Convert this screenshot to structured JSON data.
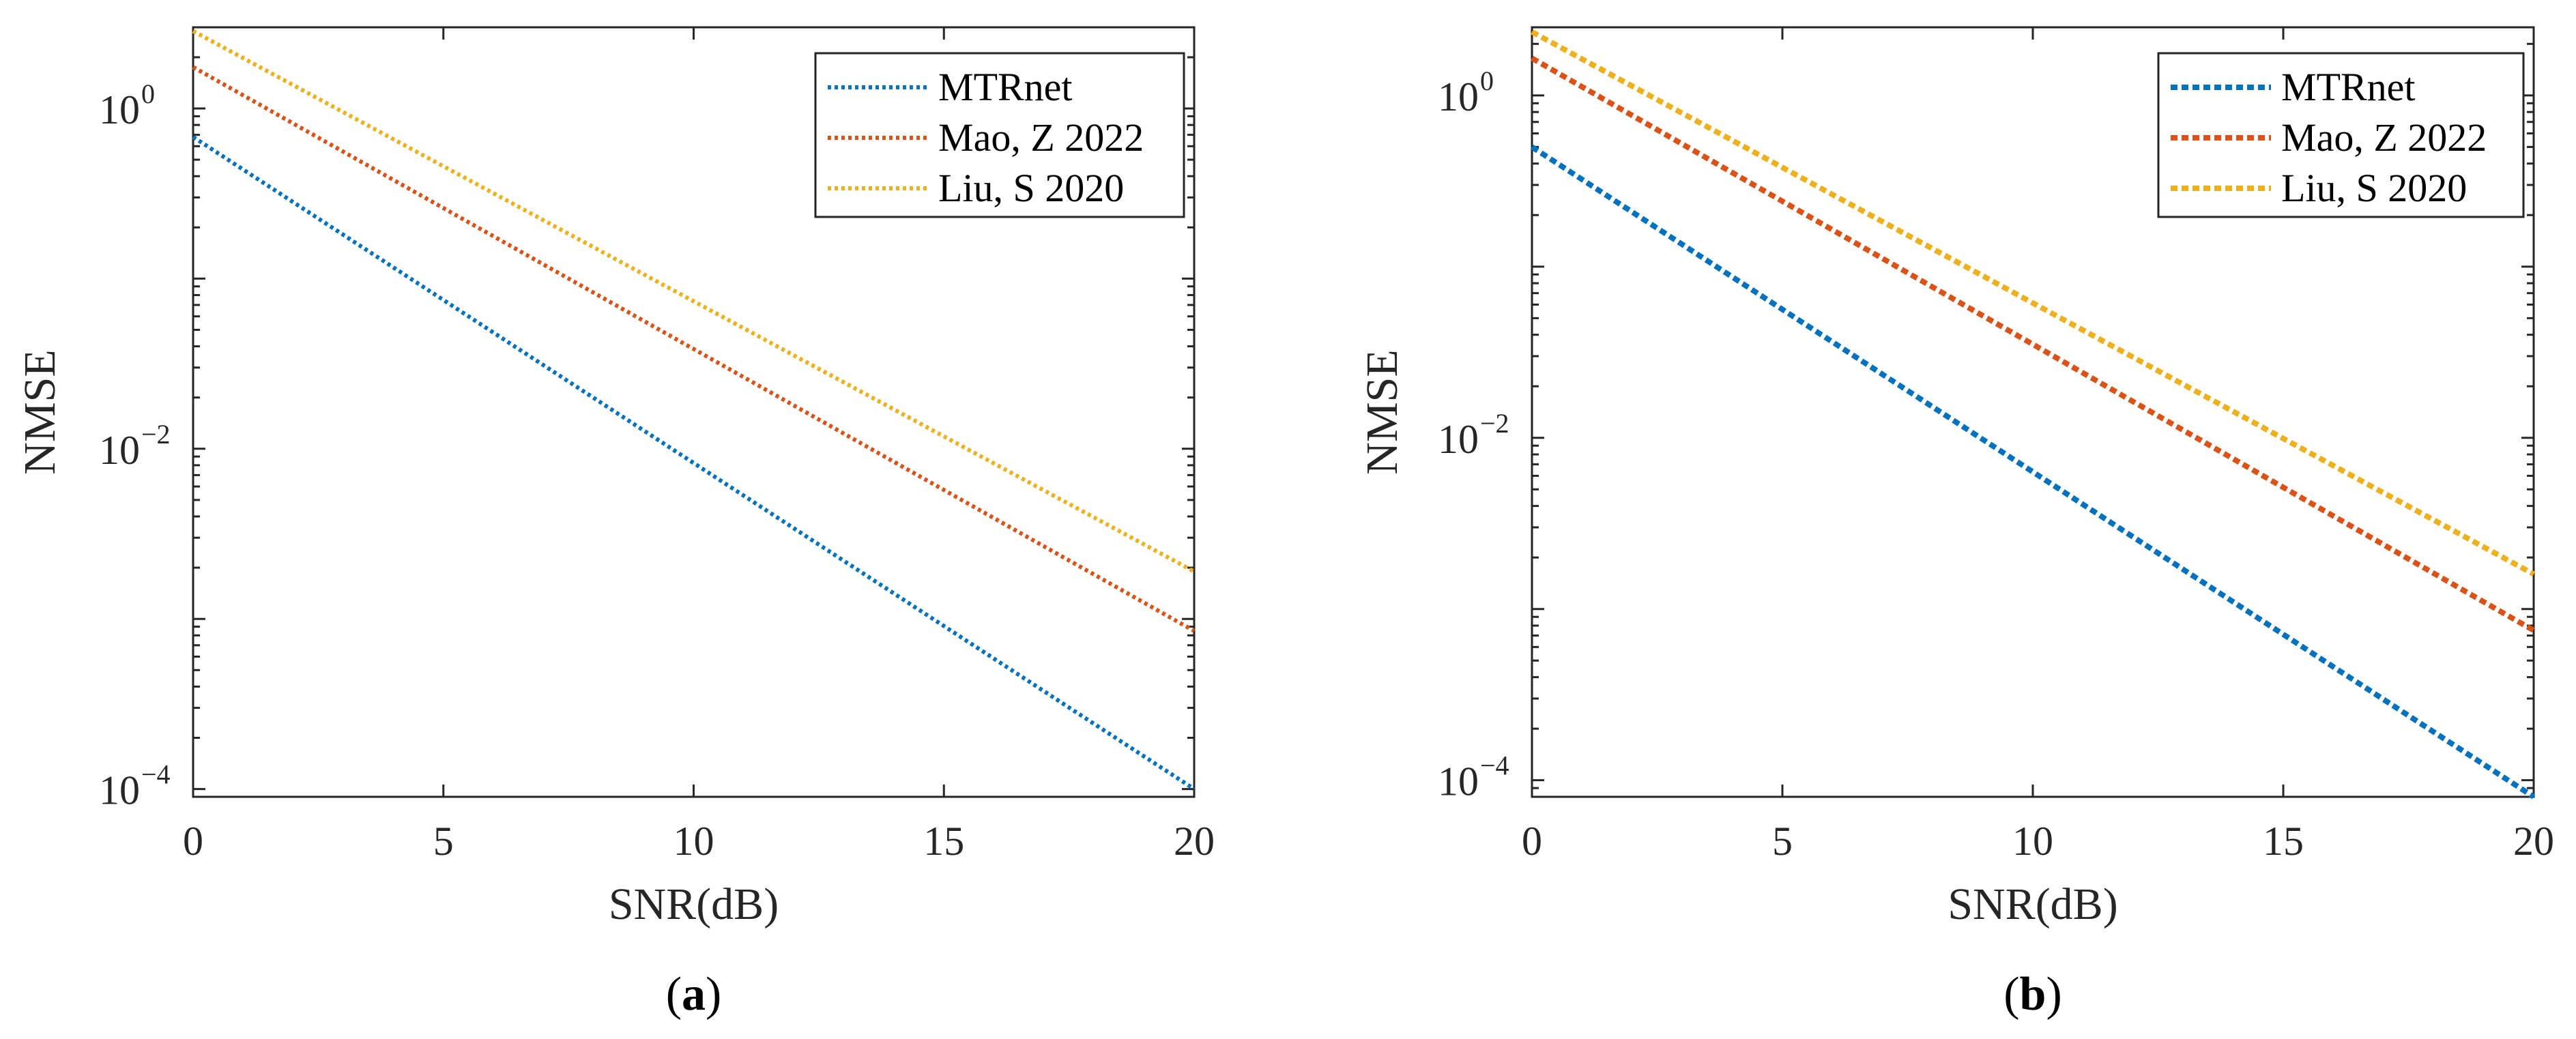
{
  "figure": {
    "panels": [
      {
        "caption_open": "(",
        "caption_letter": "a",
        "caption_close": ")"
      },
      {
        "caption_open": "(",
        "caption_letter": "b",
        "caption_close": ")"
      }
    ]
  },
  "chart_data": [
    {
      "type": "line",
      "title": "",
      "xlabel": "SNR(dB)",
      "ylabel": "NMSE",
      "yscale": "log",
      "xlim": [
        0,
        20
      ],
      "ylim": [
        9e-05,
        3.0
      ],
      "xticks": [
        0,
        5,
        10,
        15,
        20
      ],
      "xtick_labels": [
        "0",
        "5",
        "10",
        "15",
        "20"
      ],
      "yticks": [
        0.0001,
        0.01,
        1
      ],
      "ytick_labels": [
        {
          "base": "10",
          "exp": "−4"
        },
        {
          "base": "10",
          "exp": "−2"
        },
        {
          "base": "10",
          "exp": "0"
        }
      ],
      "grid": false,
      "legend_position": "top-right",
      "x": [
        0,
        20
      ],
      "series": [
        {
          "name": "MTRnet",
          "color": "#0072BD",
          "line_style": "dotted",
          "values": [
            0.68,
            0.0001
          ]
        },
        {
          "name": "Mao, Z 2022",
          "color": "#D95319",
          "line_style": "dotted",
          "values": [
            1.75,
            0.00085
          ]
        },
        {
          "name": "Liu, S 2020",
          "color": "#EDB120",
          "line_style": "dotted",
          "values": [
            2.85,
            0.0019
          ]
        }
      ]
    },
    {
      "type": "line",
      "title": "",
      "xlabel": "SNR(dB)",
      "ylabel": "NMSE",
      "yscale": "log",
      "xlim": [
        0,
        20
      ],
      "ylim": [
        8e-05,
        2.5
      ],
      "xticks": [
        0,
        5,
        10,
        15,
        20
      ],
      "xtick_labels": [
        "0",
        "5",
        "10",
        "15",
        "20"
      ],
      "yticks": [
        0.0001,
        0.01,
        1
      ],
      "ytick_labels": [
        {
          "base": "10",
          "exp": "−4"
        },
        {
          "base": "10",
          "exp": "−2"
        },
        {
          "base": "10",
          "exp": "0"
        }
      ],
      "grid": false,
      "legend_position": "top-right",
      "x": [
        0,
        20
      ],
      "series": [
        {
          "name": "MTRnet",
          "color": "#0072BD",
          "line_style": "dashed",
          "values": [
            0.5,
            8e-05
          ]
        },
        {
          "name": "Mao, Z 2022",
          "color": "#D95319",
          "line_style": "dashed",
          "values": [
            1.65,
            0.00075
          ]
        },
        {
          "name": "Liu, S 2020",
          "color": "#EDB120",
          "line_style": "dashed",
          "values": [
            2.35,
            0.0016
          ]
        }
      ]
    }
  ]
}
